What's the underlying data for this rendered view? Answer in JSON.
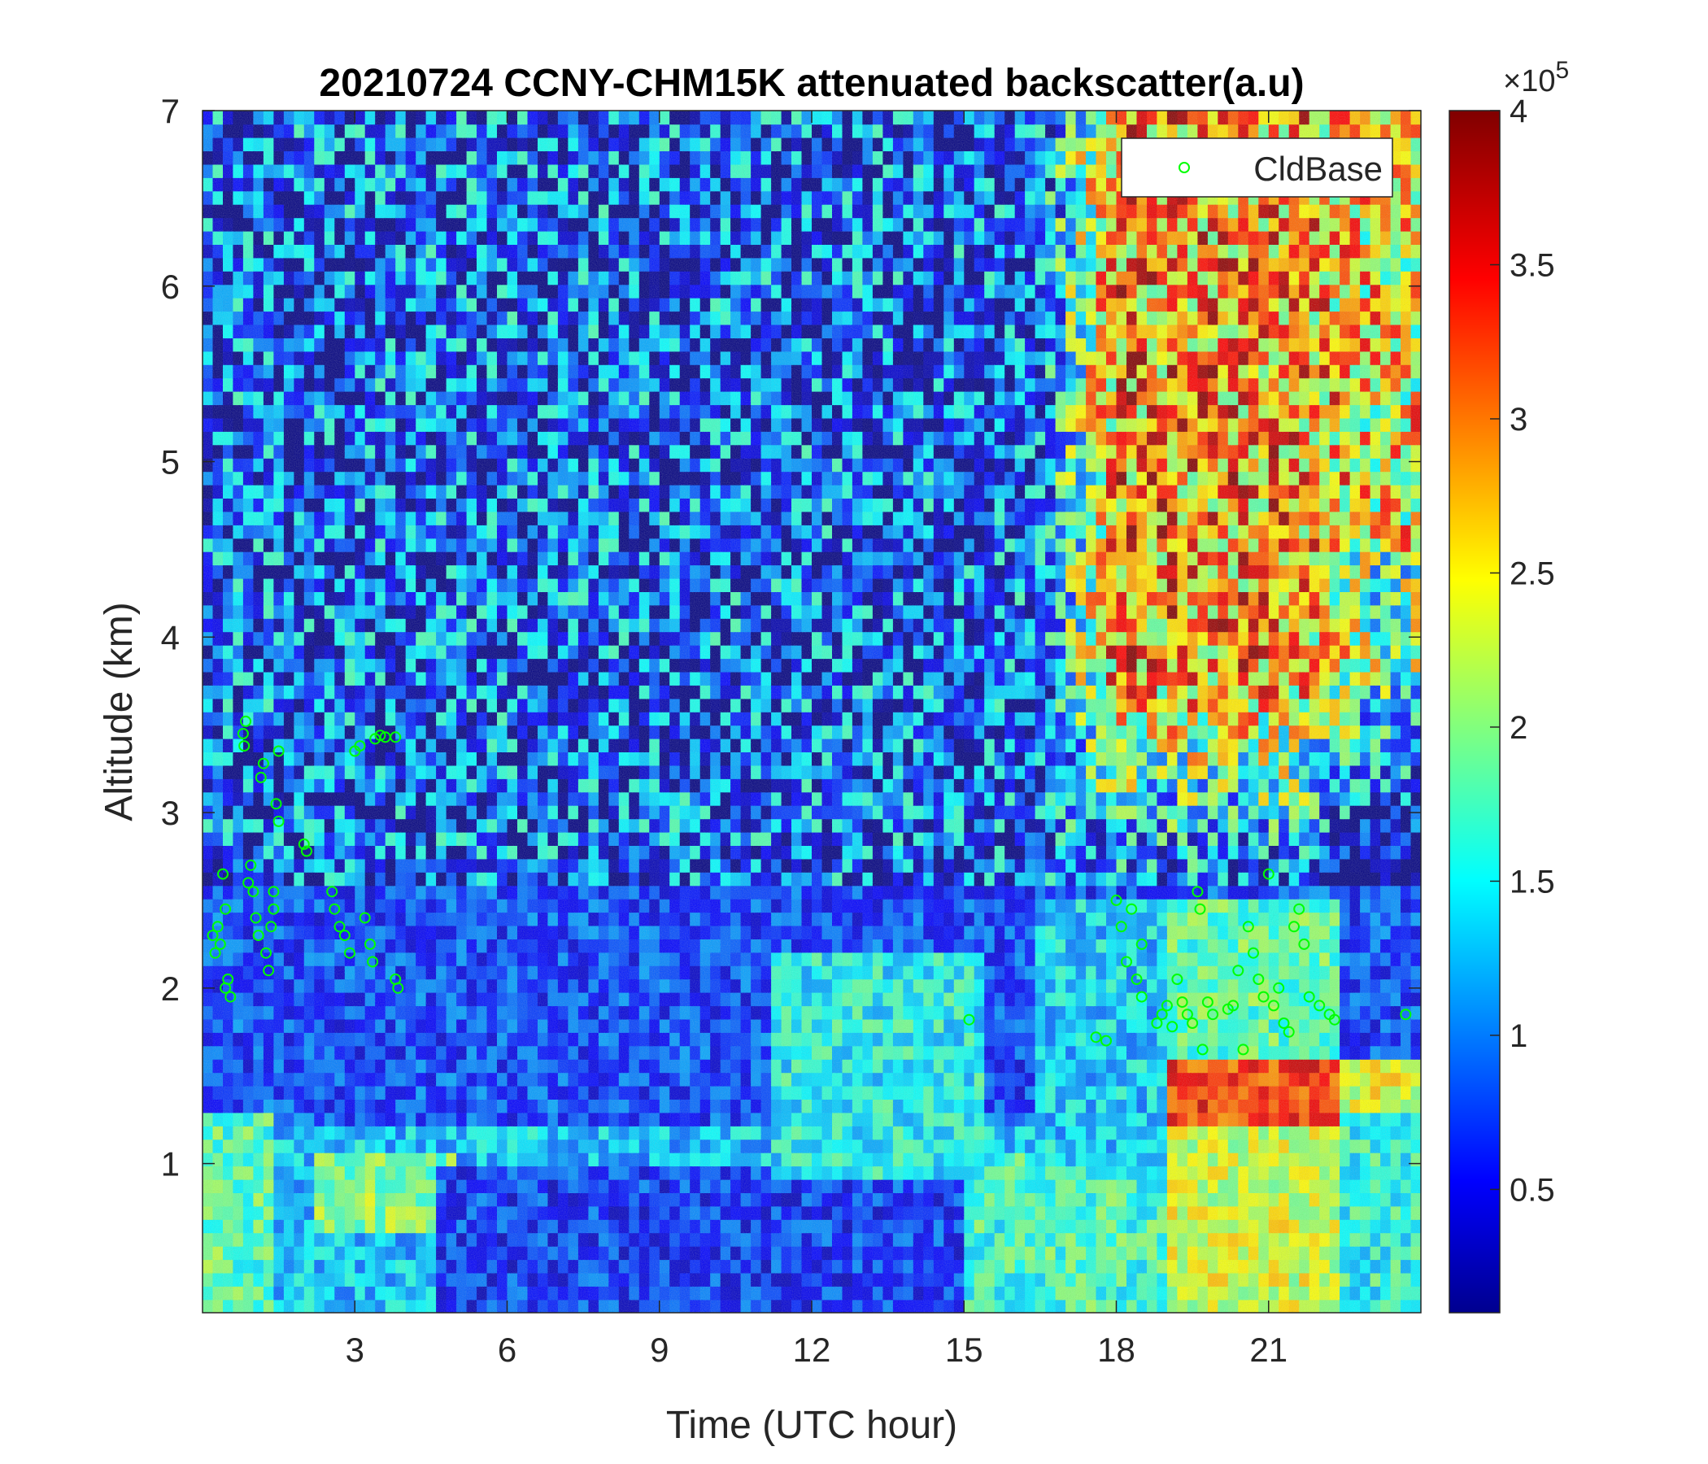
{
  "chart_data": {
    "type": "heatmap",
    "title": "20210724 CCNY-CHM15K attenuated backscatter(a.u)",
    "xlabel": "Time (UTC hour)",
    "ylabel": "Altitude (km)",
    "xlim": [
      0,
      24
    ],
    "ylim": [
      0.15,
      7
    ],
    "xticks": [
      3,
      6,
      9,
      12,
      15,
      18,
      21
    ],
    "yticks": [
      1,
      2,
      3,
      4,
      5,
      6,
      7
    ],
    "colorbar": {
      "colormap": "jet",
      "clim": [
        0.1,
        4
      ],
      "ticks": [
        0.5,
        1,
        1.5,
        2,
        2.5,
        3,
        3.5,
        4
      ],
      "exponent_label": "×10",
      "exponent": "5"
    },
    "legend": {
      "entries": [
        "CldBase"
      ],
      "placement": "top-right"
    },
    "cloud_base_series": {
      "name": "CldBase",
      "color": "#00ff00",
      "points": [
        [
          0.2,
          2.3
        ],
        [
          0.25,
          2.2
        ],
        [
          0.3,
          2.35
        ],
        [
          0.35,
          2.25
        ],
        [
          0.4,
          2.65
        ],
        [
          0.45,
          2.45
        ],
        [
          0.5,
          2.05
        ],
        [
          0.55,
          1.95
        ],
        [
          0.45,
          2.0
        ],
        [
          0.8,
          3.45
        ],
        [
          0.82,
          3.38
        ],
        [
          0.85,
          3.52
        ],
        [
          0.9,
          2.6
        ],
        [
          0.95,
          2.7
        ],
        [
          1.0,
          2.55
        ],
        [
          1.05,
          2.4
        ],
        [
          1.1,
          2.3
        ],
        [
          1.15,
          3.2
        ],
        [
          1.2,
          3.28
        ],
        [
          1.25,
          2.2
        ],
        [
          1.3,
          2.1
        ],
        [
          1.35,
          2.35
        ],
        [
          1.4,
          2.55
        ],
        [
          1.45,
          3.05
        ],
        [
          1.5,
          2.95
        ],
        [
          1.5,
          3.35
        ],
        [
          1.4,
          2.45
        ],
        [
          2.0,
          2.82
        ],
        [
          2.05,
          2.78
        ],
        [
          2.55,
          2.55
        ],
        [
          2.6,
          2.45
        ],
        [
          2.7,
          2.35
        ],
        [
          2.8,
          2.3
        ],
        [
          2.9,
          2.2
        ],
        [
          3.0,
          3.35
        ],
        [
          3.1,
          3.38
        ],
        [
          3.2,
          2.4
        ],
        [
          3.3,
          2.25
        ],
        [
          3.35,
          2.15
        ],
        [
          3.4,
          3.42
        ],
        [
          3.5,
          3.44
        ],
        [
          3.6,
          3.43
        ],
        [
          3.8,
          3.43
        ],
        [
          3.85,
          2.0
        ],
        [
          3.8,
          2.05
        ],
        [
          15.1,
          1.82
        ],
        [
          17.6,
          1.72
        ],
        [
          17.8,
          1.7
        ],
        [
          18.0,
          2.5
        ],
        [
          18.1,
          2.35
        ],
        [
          18.2,
          2.15
        ],
        [
          18.3,
          2.45
        ],
        [
          18.4,
          2.05
        ],
        [
          18.5,
          2.25
        ],
        [
          18.5,
          1.95
        ],
        [
          18.8,
          1.8
        ],
        [
          18.9,
          1.85
        ],
        [
          19.0,
          1.9
        ],
        [
          19.1,
          1.78
        ],
        [
          19.2,
          2.05
        ],
        [
          19.3,
          1.92
        ],
        [
          19.4,
          1.85
        ],
        [
          19.5,
          1.8
        ],
        [
          19.6,
          2.55
        ],
        [
          19.65,
          2.45
        ],
        [
          19.7,
          1.65
        ],
        [
          19.8,
          1.92
        ],
        [
          19.9,
          1.85
        ],
        [
          20.2,
          1.88
        ],
        [
          20.3,
          1.9
        ],
        [
          20.4,
          2.1
        ],
        [
          20.5,
          1.65
        ],
        [
          20.6,
          2.35
        ],
        [
          20.7,
          2.2
        ],
        [
          20.8,
          2.05
        ],
        [
          20.9,
          1.95
        ],
        [
          21.0,
          2.65
        ],
        [
          21.1,
          1.9
        ],
        [
          21.2,
          2.0
        ],
        [
          21.3,
          1.8
        ],
        [
          21.4,
          1.75
        ],
        [
          21.5,
          2.35
        ],
        [
          21.6,
          2.45
        ],
        [
          21.7,
          2.25
        ],
        [
          21.8,
          1.95
        ],
        [
          22.0,
          1.9
        ],
        [
          22.2,
          1.85
        ],
        [
          22.3,
          1.82
        ],
        [
          23.7,
          1.85
        ]
      ]
    }
  }
}
